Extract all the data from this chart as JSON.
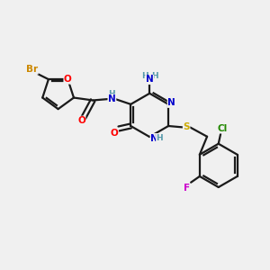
{
  "bg_color": "#f0f0f0",
  "bond_color": "#1a1a1a",
  "atom_colors": {
    "Br": "#cc8800",
    "O": "#ff0000",
    "N": "#0000cc",
    "S": "#ccaa00",
    "Cl": "#228800",
    "F": "#cc00cc",
    "C": "#1a1a1a",
    "H": "#5599aa"
  },
  "figsize": [
    3.0,
    3.0
  ],
  "dpi": 100
}
